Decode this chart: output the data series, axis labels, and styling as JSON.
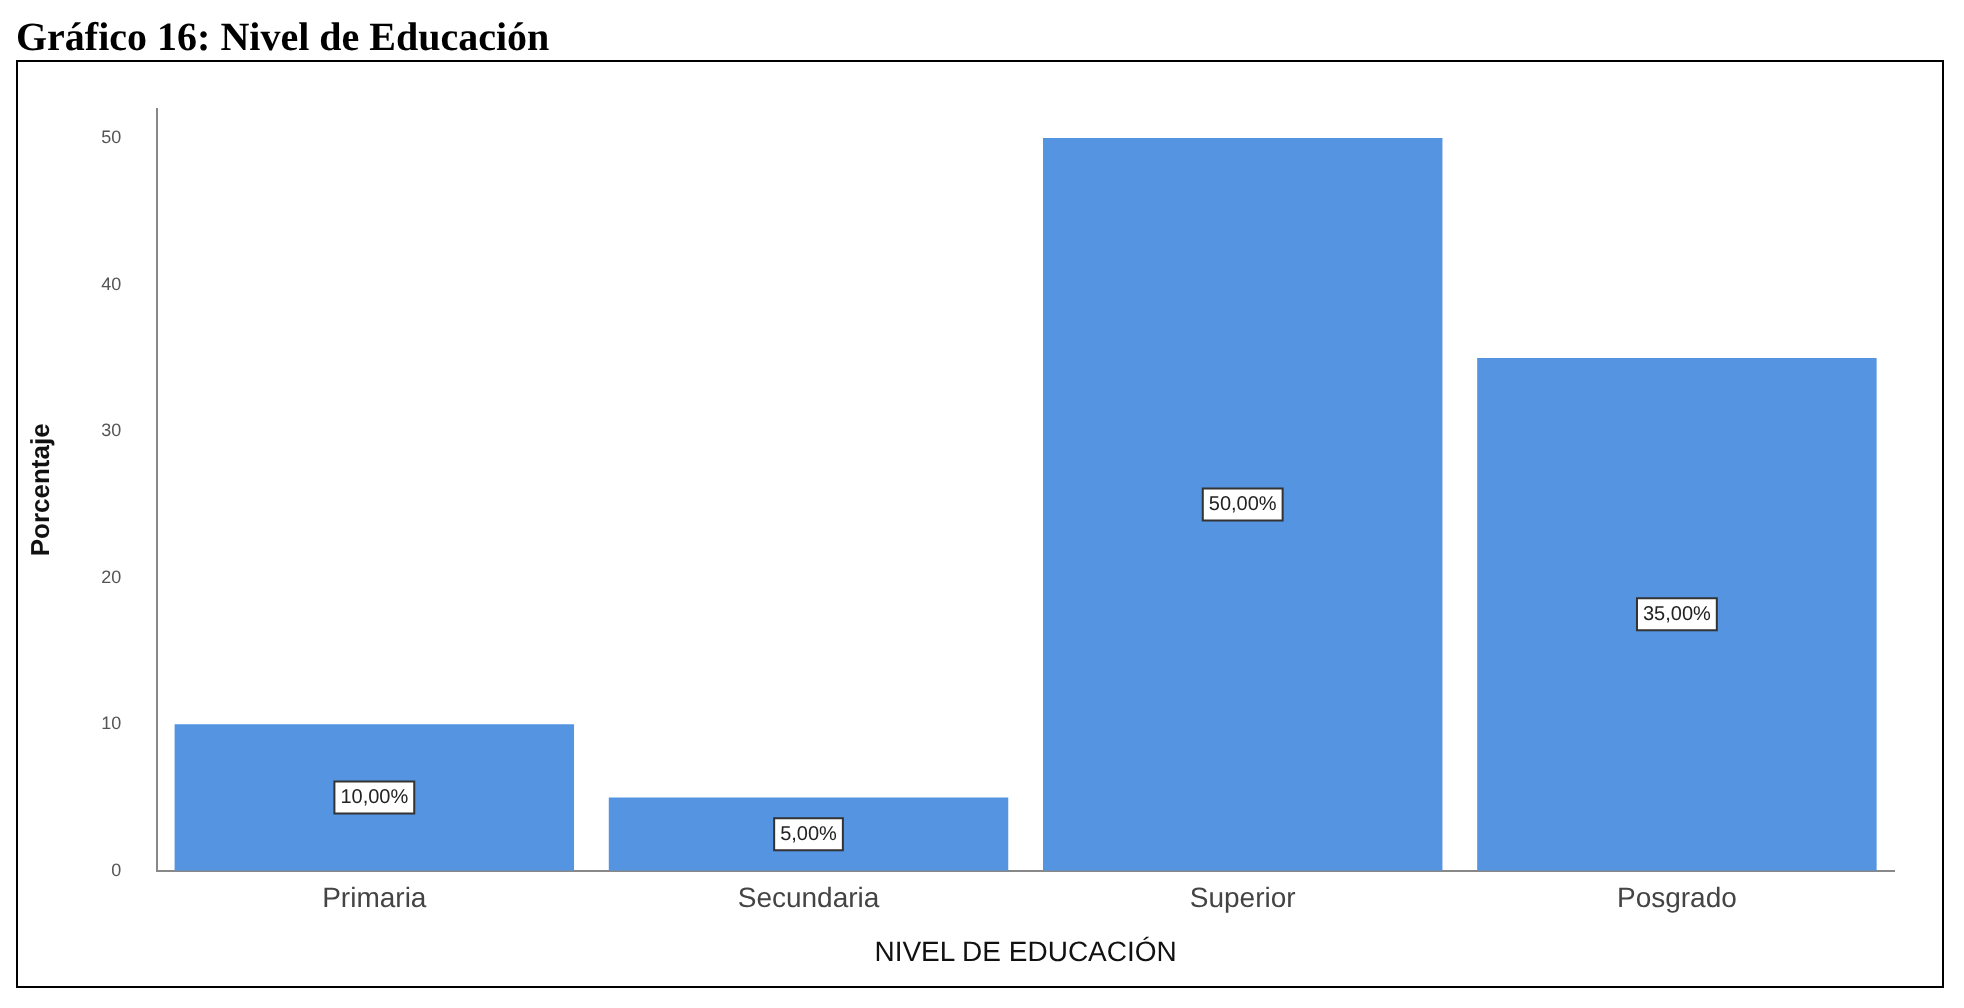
{
  "chart_data": {
    "type": "bar",
    "title": "Gráfico 16: Nivel de Educación",
    "categories": [
      "Primaria",
      "Secundaria",
      "Superior",
      "Posgrado"
    ],
    "values": [
      10,
      5,
      50,
      35
    ],
    "color": "#5594e0",
    "value_labels": [
      "10,00%",
      "5,00%",
      "50,00%",
      "35,00%"
    ],
    "xlabel": "NIVEL DE EDUCACIÓN",
    "ylabel": "Porcentaje",
    "ylim": [
      0,
      52
    ],
    "yticks": [
      0,
      10,
      20,
      30,
      40,
      50
    ],
    "grid": false,
    "legend": false
  }
}
